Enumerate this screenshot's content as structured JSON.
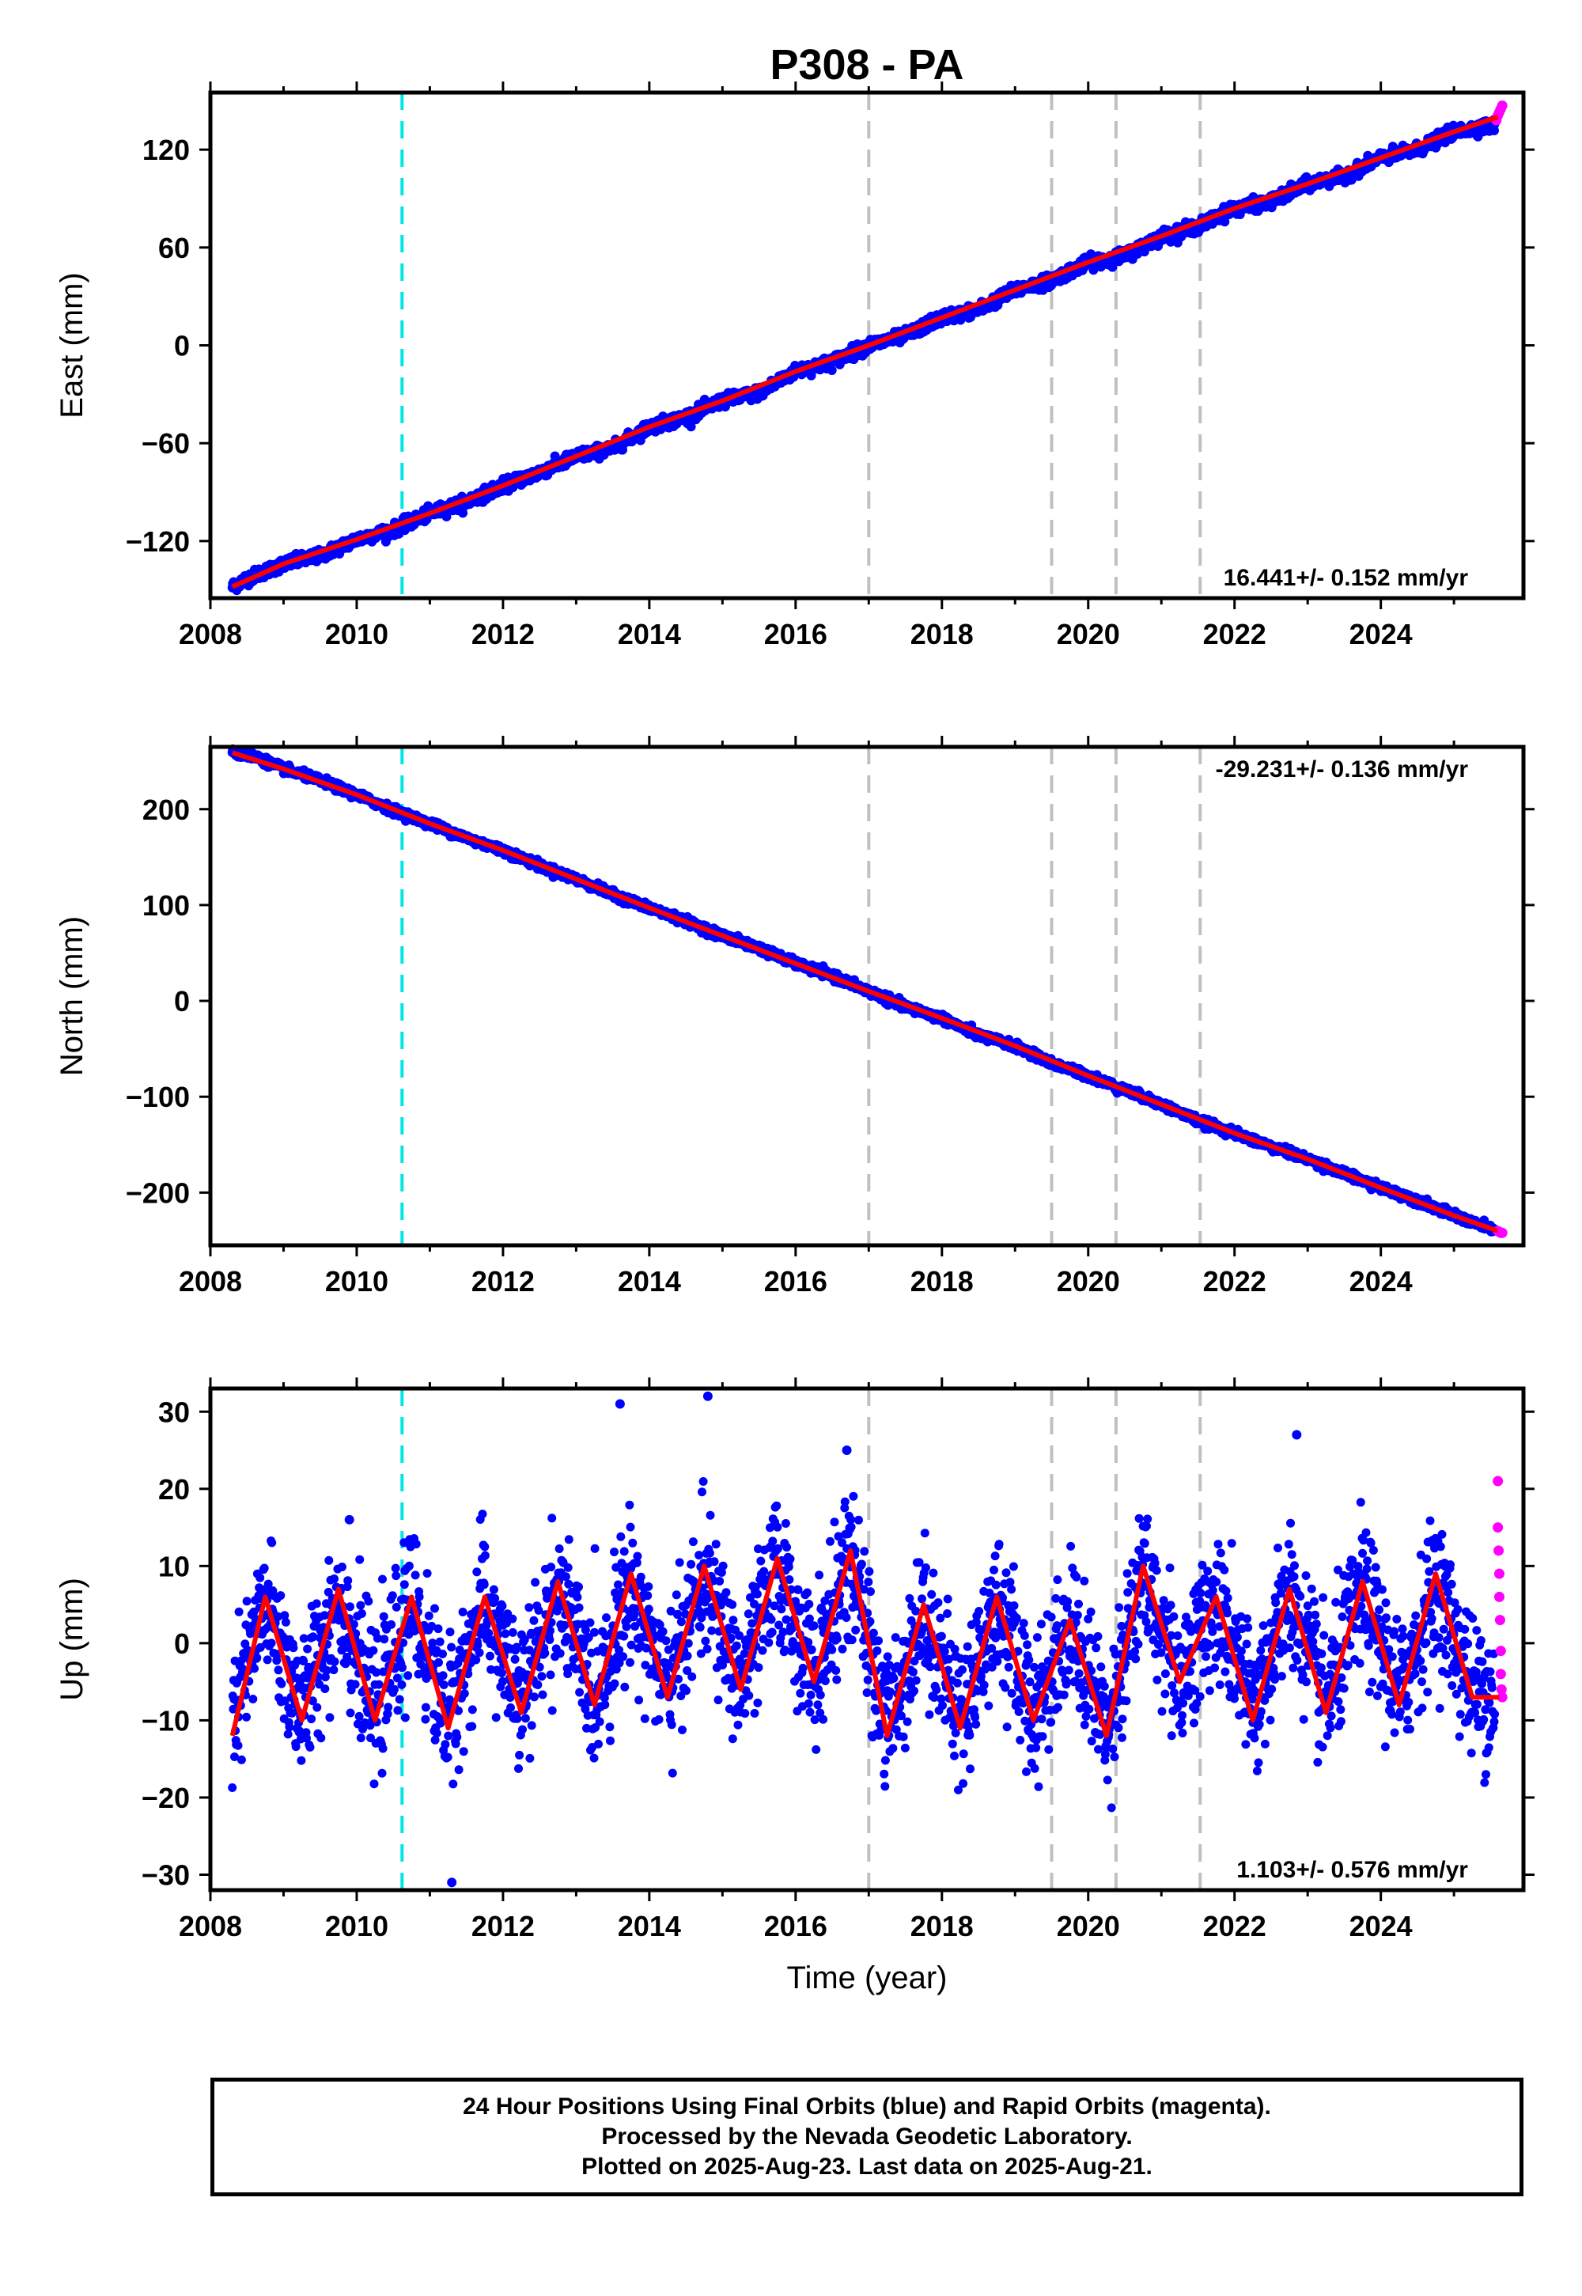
{
  "figure": {
    "title": "P308 - PA",
    "footer": [
      "24 Hour Positions Using Final Orbits (blue) and Rapid Orbits (magenta).",
      "Processed by the Nevada Geodetic Laboratory.",
      "Plotted on 2025-Aug-23. Last data on 2025-Aug-21."
    ],
    "colors": {
      "final_orbits": "#0000ff",
      "rapid_orbits": "#ff00ff",
      "model_fit": "#ff0000",
      "event_cyan": "#00e5e5",
      "event_gray": "#c0c0c0"
    }
  },
  "chart_data": [
    {
      "type": "scatter",
      "panel": "east",
      "ylabel": "East (mm)",
      "xlabel": "",
      "xlim": [
        2008.0,
        2025.95
      ],
      "ylim": [
        -155,
        155
      ],
      "xticks": [
        2008,
        2010,
        2012,
        2014,
        2016,
        2018,
        2020,
        2022,
        2024
      ],
      "yticks": [
        -120,
        -60,
        0,
        60,
        120
      ],
      "rate_label": "16.441+/- 0.152 mm/yr",
      "event_lines": [
        {
          "x": 2010.62,
          "color": "cyan"
        },
        {
          "x": 2017.0,
          "color": "gray"
        },
        {
          "x": 2019.5,
          "color": "gray"
        },
        {
          "x": 2020.38,
          "color": "gray"
        },
        {
          "x": 2021.53,
          "color": "gray"
        }
      ],
      "series": [
        {
          "name": "Final Orbits",
          "kind": "scatter",
          "x": [
            2008.3,
            2008.5,
            2009.0,
            2009.5,
            2010.0,
            2010.5,
            2011.0,
            2011.5,
            2012.0,
            2012.5,
            2013.0,
            2013.5,
            2014.0,
            2014.5,
            2015.0,
            2015.5,
            2016.0,
            2016.5,
            2017.0,
            2017.5,
            2018.0,
            2018.5,
            2019.0,
            2019.5,
            2020.0,
            2020.5,
            2021.0,
            2021.5,
            2022.0,
            2022.5,
            2023.0,
            2023.5,
            2024.0,
            2024.5,
            2025.0,
            2025.55
          ],
          "y": [
            -148,
            -143,
            -134,
            -129,
            -119,
            -113,
            -103,
            -96,
            -86,
            -78,
            -68,
            -63,
            -50,
            -44,
            -34,
            -29,
            -16,
            -10,
            0,
            6,
            17,
            22,
            34,
            40,
            51,
            55,
            67,
            73,
            84,
            88,
            99,
            104,
            115,
            120,
            131,
            135
          ]
        },
        {
          "name": "Rapid Orbits",
          "kind": "scatter",
          "x": [
            2025.58,
            2025.6,
            2025.62,
            2025.64,
            2025.66
          ],
          "y": [
            138,
            141,
            143,
            145,
            147
          ]
        },
        {
          "name": "Model Fit",
          "kind": "line",
          "x": [
            2008.3,
            2009.0,
            2010.0,
            2011.0,
            2012.0,
            2013.0,
            2014.0,
            2015.0,
            2016.0,
            2017.0,
            2018.0,
            2019.0,
            2020.0,
            2021.0,
            2022.0,
            2023.0,
            2024.0,
            2025.0,
            2025.6
          ],
          "y": [
            -148,
            -134,
            -119,
            -103,
            -86,
            -68,
            -50,
            -34,
            -16,
            0,
            17,
            34,
            51,
            67,
            84,
            99,
            115,
            131,
            140
          ]
        }
      ]
    },
    {
      "type": "scatter",
      "panel": "north",
      "ylabel": "North (mm)",
      "xlabel": "",
      "xlim": [
        2008.0,
        2025.95
      ],
      "ylim": [
        -255,
        265
      ],
      "xticks": [
        2008,
        2010,
        2012,
        2014,
        2016,
        2018,
        2020,
        2022,
        2024
      ],
      "yticks": [
        -200,
        -100,
        0,
        100,
        200
      ],
      "rate_label": "-29.231+/- 0.136 mm/yr",
      "event_lines": [
        {
          "x": 2010.62,
          "color": "cyan"
        },
        {
          "x": 2017.0,
          "color": "gray"
        },
        {
          "x": 2019.5,
          "color": "gray"
        },
        {
          "x": 2020.38,
          "color": "gray"
        },
        {
          "x": 2021.53,
          "color": "gray"
        }
      ],
      "series": [
        {
          "name": "Final Orbits",
          "kind": "scatter",
          "x": [
            2008.3,
            2008.6,
            2009.0,
            2009.5,
            2010.0,
            2010.5,
            2011.0,
            2011.5,
            2012.0,
            2012.5,
            2013.0,
            2013.5,
            2014.0,
            2014.5,
            2015.0,
            2015.5,
            2016.0,
            2016.5,
            2017.0,
            2017.5,
            2018.0,
            2018.5,
            2019.0,
            2019.5,
            2020.0,
            2020.5,
            2021.0,
            2021.5,
            2022.0,
            2022.5,
            2023.0,
            2023.5,
            2024.0,
            2024.5,
            2025.0,
            2025.5
          ],
          "y": [
            259,
            255,
            242,
            230,
            215,
            199,
            185,
            170,
            157,
            141,
            127,
            111,
            97,
            83,
            68,
            55,
            39,
            26,
            10,
            -6,
            -18,
            -36,
            -47,
            -65,
            -78,
            -93,
            -108,
            -125,
            -138,
            -152,
            -165,
            -180,
            -195,
            -208,
            -224,
            -238
          ]
        },
        {
          "name": "Rapid Orbits",
          "kind": "scatter",
          "x": [
            2025.6,
            2025.62,
            2025.64,
            2025.66
          ],
          "y": [
            -240,
            -241,
            -242,
            -242
          ]
        },
        {
          "name": "Model Fit",
          "kind": "line",
          "x": [
            2008.3,
            2009.0,
            2010.0,
            2011.0,
            2012.0,
            2013.0,
            2014.0,
            2015.0,
            2016.0,
            2017.0,
            2018.0,
            2019.0,
            2020.0,
            2021.0,
            2022.0,
            2023.0,
            2024.0,
            2025.0,
            2025.6
          ],
          "y": [
            259,
            242,
            215,
            185,
            157,
            127,
            97,
            68,
            39,
            10,
            -18,
            -47,
            -78,
            -108,
            -138,
            -165,
            -195,
            -224,
            -240
          ]
        }
      ]
    },
    {
      "type": "scatter",
      "panel": "up",
      "ylabel": "Up (mm)",
      "xlabel": "Time (year)",
      "xlim": [
        2008.0,
        2025.95
      ],
      "ylim": [
        -32,
        33
      ],
      "xticks": [
        2008,
        2010,
        2012,
        2014,
        2016,
        2018,
        2020,
        2022,
        2024
      ],
      "yticks": [
        -30,
        -20,
        -10,
        0,
        10,
        20,
        30
      ],
      "rate_label": "1.103+/- 0.576 mm/yr",
      "event_lines": [
        {
          "x": 2010.62,
          "color": "cyan"
        },
        {
          "x": 2017.0,
          "color": "gray"
        },
        {
          "x": 2019.5,
          "color": "gray"
        },
        {
          "x": 2020.38,
          "color": "gray"
        },
        {
          "x": 2021.53,
          "color": "gray"
        }
      ],
      "series": [
        {
          "name": "Final Orbits",
          "kind": "scatter",
          "x": [
            2008.3,
            2008.75,
            2009.25,
            2009.75,
            2010.25,
            2010.75,
            2011.25,
            2011.75,
            2012.25,
            2012.75,
            2013.25,
            2013.75,
            2014.25,
            2014.75,
            2015.25,
            2015.75,
            2016.25,
            2016.75,
            2017.25,
            2017.75,
            2018.25,
            2018.75,
            2019.25,
            2019.75,
            2020.25,
            2020.75,
            2021.25,
            2021.75,
            2022.25,
            2022.75,
            2023.25,
            2023.75,
            2024.25,
            2024.75,
            2025.25,
            2009.9,
            2011.3,
            2013.6,
            2014.8,
            2016.7,
            2022.85
          ],
          "y": [
            -12,
            6,
            -10,
            7,
            -10,
            6,
            -11,
            6,
            -9,
            8,
            -8,
            9,
            -7,
            10,
            -6,
            11,
            -5,
            12,
            -12,
            5,
            -11,
            6,
            -10,
            3,
            -12,
            10,
            -5,
            6,
            -10,
            7,
            -9,
            8,
            -8,
            9,
            -7,
            16,
            -31,
            31,
            32,
            25,
            27
          ]
        },
        {
          "name": "Rapid Orbits",
          "kind": "scatter",
          "x": [
            2025.6,
            2025.6,
            2025.61,
            2025.62,
            2025.62,
            2025.63,
            2025.64,
            2025.64,
            2025.65,
            2025.66
          ],
          "y": [
            21,
            15,
            12,
            9,
            6,
            3,
            -1,
            -4,
            -6,
            -7
          ]
        },
        {
          "name": "Model Fit",
          "kind": "line",
          "x": [],
          "y": []
        }
      ]
    }
  ]
}
